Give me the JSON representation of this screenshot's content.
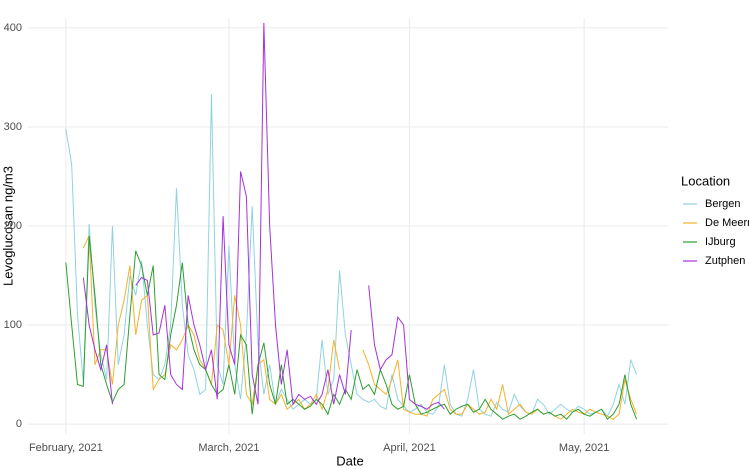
{
  "chart_data": {
    "type": "line",
    "x_label": "Date",
    "y_label": "Levoglucosan ng/m3",
    "legend_title": "Location",
    "legend_position": "right",
    "grid": true,
    "x": [
      32,
      33,
      34,
      35,
      36,
      37,
      38,
      39,
      40,
      41,
      42,
      43,
      44,
      45,
      46,
      47,
      48,
      49,
      50,
      51,
      52,
      53,
      54,
      55,
      56,
      57,
      58,
      59,
      60,
      61,
      62,
      63,
      64,
      65,
      66,
      67,
      68,
      69,
      70,
      71,
      72,
      73,
      74,
      75,
      76,
      77,
      78,
      79,
      80,
      81,
      82,
      83,
      84,
      85,
      86,
      87,
      88,
      89,
      90,
      91,
      92,
      93,
      94,
      95,
      96,
      97,
      98,
      99,
      100,
      101,
      102,
      103,
      104,
      105,
      106,
      107,
      108,
      109,
      110,
      111,
      112,
      113,
      114,
      115,
      116,
      117,
      118,
      119,
      120,
      121,
      122,
      123,
      124,
      125,
      126,
      127,
      128,
      129,
      130
    ],
    "xlim": [
      25.5,
      135.4
    ],
    "xticks": [
      {
        "value": 32,
        "label": "February, 2021"
      },
      {
        "value": 60,
        "label": "March, 2021"
      },
      {
        "value": 91,
        "label": "April, 2021"
      },
      {
        "value": 121,
        "label": "May, 2021"
      }
    ],
    "ylim": [
      -10,
      410
    ],
    "yticks": [
      0,
      100,
      200,
      300,
      400
    ],
    "series": [
      {
        "name": "Bergen",
        "color": "#8fd3e3",
        "values": [
          298,
          262,
          110,
          42,
          202,
          120,
          70,
          45,
          200,
          60,
          90,
          150,
          130,
          165,
          100,
          50,
          45,
          60,
          100,
          238,
          120,
          70,
          55,
          30,
          35,
          333,
          60,
          40,
          180,
          60,
          25,
          90,
          220,
          80,
          30,
          60,
          20,
          35,
          25,
          15,
          20,
          25,
          20,
          25,
          85,
          30,
          45,
          155,
          90,
          60,
          30,
          25,
          22,
          25,
          18,
          15,
          50,
          25,
          18,
          12,
          15,
          20,
          12,
          10,
          18,
          60,
          20,
          10,
          8,
          25,
          55,
          15,
          10,
          8,
          22,
          15,
          12,
          30,
          18,
          12,
          10,
          25,
          20,
          10,
          15,
          20,
          15,
          12,
          18,
          15,
          10,
          12,
          15,
          8,
          20,
          40,
          20,
          65,
          50
        ]
      },
      {
        "name": "De Meern",
        "color": "#f5b12a",
        "values": [
          null,
          null,
          null,
          178,
          190,
          60,
          75,
          75,
          40,
          100,
          125,
          160,
          90,
          125,
          130,
          35,
          45,
          50,
          80,
          75,
          85,
          100,
          90,
          65,
          55,
          40,
          100,
          95,
          60,
          130,
          100,
          30,
          20,
          60,
          65,
          25,
          20,
          30,
          15,
          20,
          25,
          15,
          20,
          30,
          15,
          35,
          85,
          55,
          null,
          null,
          null,
          75,
          60,
          40,
          35,
          30,
          45,
          65,
          15,
          12,
          10,
          10,
          8,
          25,
          30,
          35,
          15,
          10,
          10,
          20,
          15,
          10,
          12,
          25,
          15,
          40,
          10,
          15,
          20,
          12,
          10,
          15,
          10,
          12,
          8,
          5,
          10,
          15,
          12,
          10,
          15,
          12,
          10,
          8,
          5,
          10,
          45,
          25,
          10
        ]
      },
      {
        "name": "IJburg",
        "color": "#2e9e2e",
        "values": [
          163,
          100,
          40,
          38,
          190,
          130,
          60,
          40,
          22,
          35,
          40,
          110,
          175,
          160,
          130,
          160,
          50,
          45,
          90,
          120,
          163,
          100,
          75,
          60,
          55,
          40,
          30,
          35,
          60,
          30,
          90,
          80,
          10,
          60,
          82,
          40,
          20,
          60,
          20,
          25,
          20,
          15,
          18,
          25,
          20,
          10,
          30,
          20,
          35,
          25,
          55,
          35,
          40,
          30,
          55,
          40,
          20,
          15,
          18,
          50,
          20,
          10,
          12,
          15,
          18,
          20,
          10,
          15,
          18,
          20,
          12,
          15,
          25,
          15,
          10,
          5,
          8,
          10,
          5,
          8,
          12,
          15,
          10,
          12,
          8,
          10,
          5,
          12,
          15,
          10,
          8,
          12,
          15,
          5,
          10,
          20,
          50,
          20,
          5
        ]
      },
      {
        "name": "Zutphen",
        "color": "#a532dc",
        "values": [
          null,
          null,
          null,
          148,
          100,
          75,
          55,
          80,
          20,
          null,
          null,
          null,
          140,
          148,
          145,
          90,
          92,
          120,
          50,
          40,
          35,
          130,
          100,
          80,
          55,
          75,
          25,
          210,
          80,
          60,
          255,
          230,
          50,
          20,
          405,
          200,
          100,
          40,
          75,
          20,
          30,
          25,
          28,
          20,
          30,
          55,
          20,
          50,
          30,
          95,
          null,
          null,
          140,
          80,
          55,
          65,
          70,
          108,
          100,
          25,
          20,
          18,
          15,
          20,
          22,
          15,
          null,
          null,
          null,
          null,
          null,
          null,
          null,
          null,
          null,
          null,
          null,
          null,
          null,
          null,
          null,
          null,
          null,
          null,
          null,
          null,
          null,
          null,
          null,
          null,
          null,
          null,
          null,
          null,
          null,
          null,
          null,
          null,
          null
        ]
      }
    ]
  }
}
